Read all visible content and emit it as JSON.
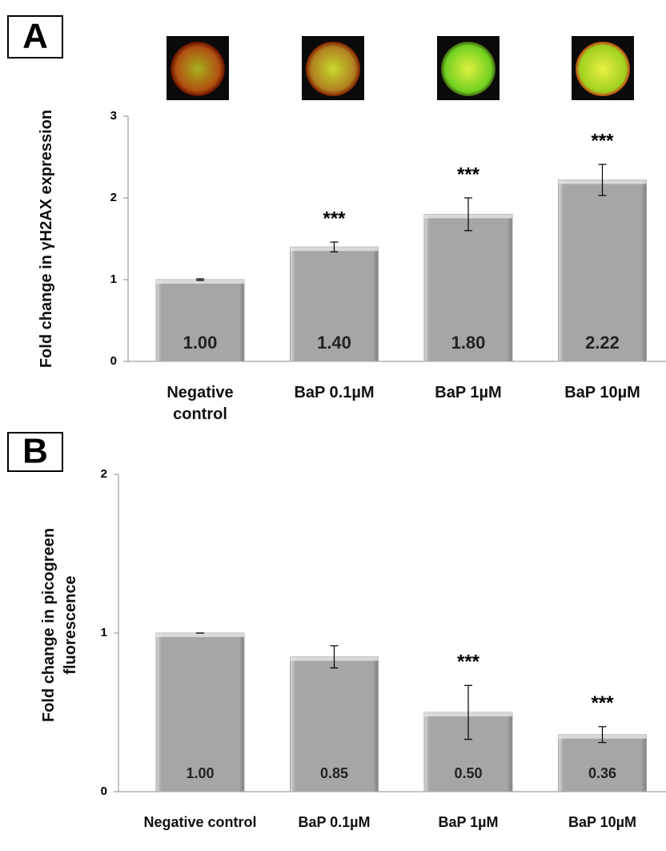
{
  "chart_data": [
    {
      "type": "bar",
      "panel": "A",
      "y_label": "Fold change in γH2AX expression",
      "categories": [
        "Negative control",
        "BaP 0.1µM",
        "BaP 1µM",
        "BaP 10µM"
      ],
      "series": [
        {
          "name": "γH2AX",
          "color": "#a6a6a6",
          "values": [
            1.0,
            1.4,
            1.8,
            2.22
          ],
          "value_labels": [
            "1.00",
            "1.40",
            "1.80",
            "2.22"
          ],
          "errors": [
            0.01,
            0.06,
            0.2,
            0.19
          ],
          "significance": [
            null,
            "***",
            "***",
            "***"
          ]
        }
      ],
      "ylim": [
        0,
        3
      ],
      "yticks": [
        0,
        1,
        2,
        3
      ],
      "grid": false
    },
    {
      "type": "bar",
      "panel": "B",
      "y_label": "Fold change in picogreen fluorescence",
      "categories": [
        "Negative control",
        "BaP 0.1µM",
        "BaP 1µM",
        "BaP 10µM"
      ],
      "series": [
        {
          "name": "picogreen",
          "color": "#a6a6a6",
          "values": [
            1.0,
            0.85,
            0.5,
            0.36
          ],
          "value_labels": [
            "1.00",
            "0.85",
            "0.50",
            "0.36"
          ],
          "errors": [
            0.0,
            0.07,
            0.17,
            0.05
          ],
          "significance": [
            null,
            null,
            "***",
            "***"
          ]
        }
      ],
      "ylim": [
        0,
        2
      ],
      "yticks": [
        0,
        1,
        2
      ],
      "grid": false
    }
  ]
}
